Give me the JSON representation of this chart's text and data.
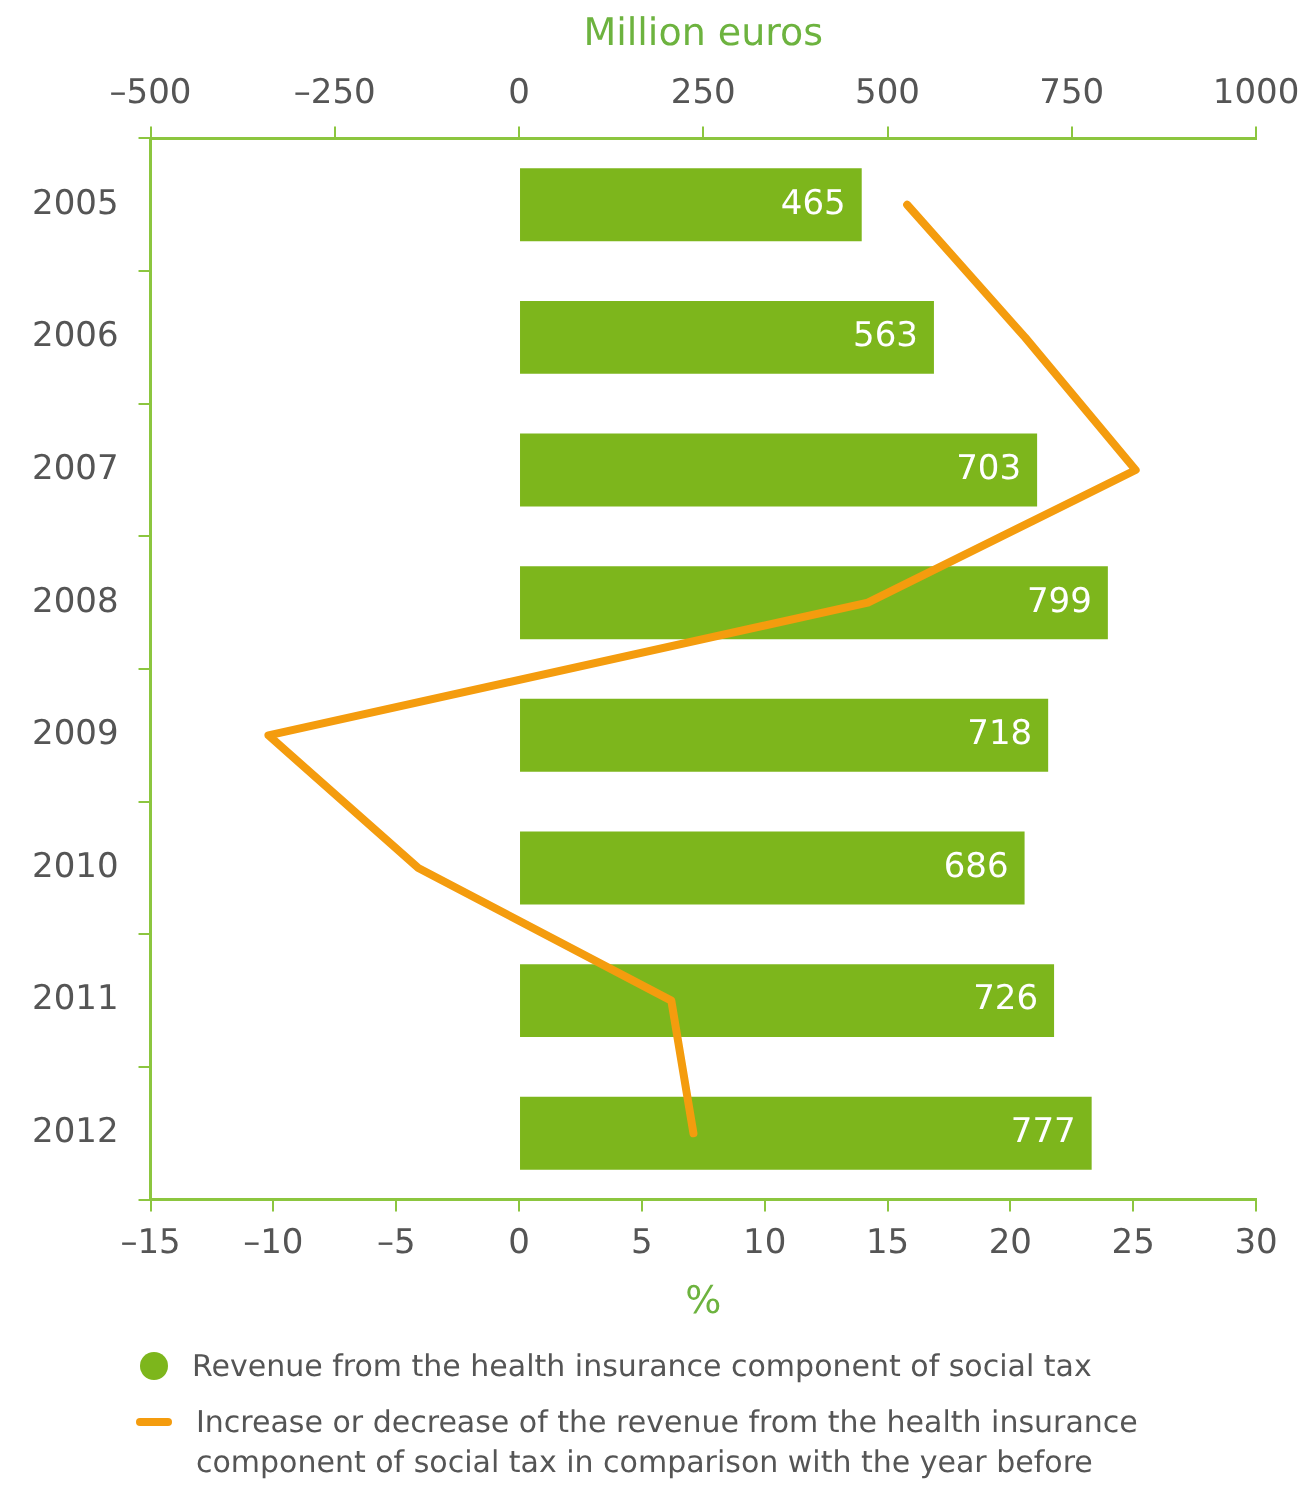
{
  "chart_data": {
    "type": "bar",
    "orientation": "horizontal",
    "categories": [
      "2005",
      "2006",
      "2007",
      "2008",
      "2009",
      "2010",
      "2011",
      "2012"
    ],
    "series": [
      {
        "name": "Revenue from the health insurance component of social tax",
        "axis": "x2",
        "color": "#7db61c",
        "values": [
          465,
          563,
          703,
          799,
          718,
          686,
          726,
          777
        ],
        "value_labels": [
          "465",
          "563",
          "703",
          "799",
          "718",
          "686",
          "726",
          "777"
        ]
      },
      {
        "name": "Increase or decrease of the revenue from the health insurance component of social tax in comparison with the year before",
        "type": "line",
        "color": "#f49c0e",
        "values": [
          15.8,
          20.6,
          25.1,
          14.2,
          -10.2,
          -4.1,
          6.2,
          7.1
        ]
      }
    ],
    "xlabel": "%",
    "xlim": [
      -15,
      30
    ],
    "xticks": [
      {
        "value": -15,
        "label": "–15"
      },
      {
        "value": -10,
        "label": "–10"
      },
      {
        "value": -5,
        "label": "–5"
      },
      0,
      5,
      10,
      15,
      20,
      25,
      30
    ],
    "x2label": "Million euros",
    "x2lim": [
      -500,
      1000
    ],
    "x2ticks": [
      {
        "value": -500,
        "label": "–500"
      },
      {
        "value": -250,
        "label": "–250"
      },
      0,
      250,
      500,
      750,
      1000
    ],
    "grid": false,
    "legend": "bottom",
    "marker": "none",
    "line_style": "solid"
  }
}
